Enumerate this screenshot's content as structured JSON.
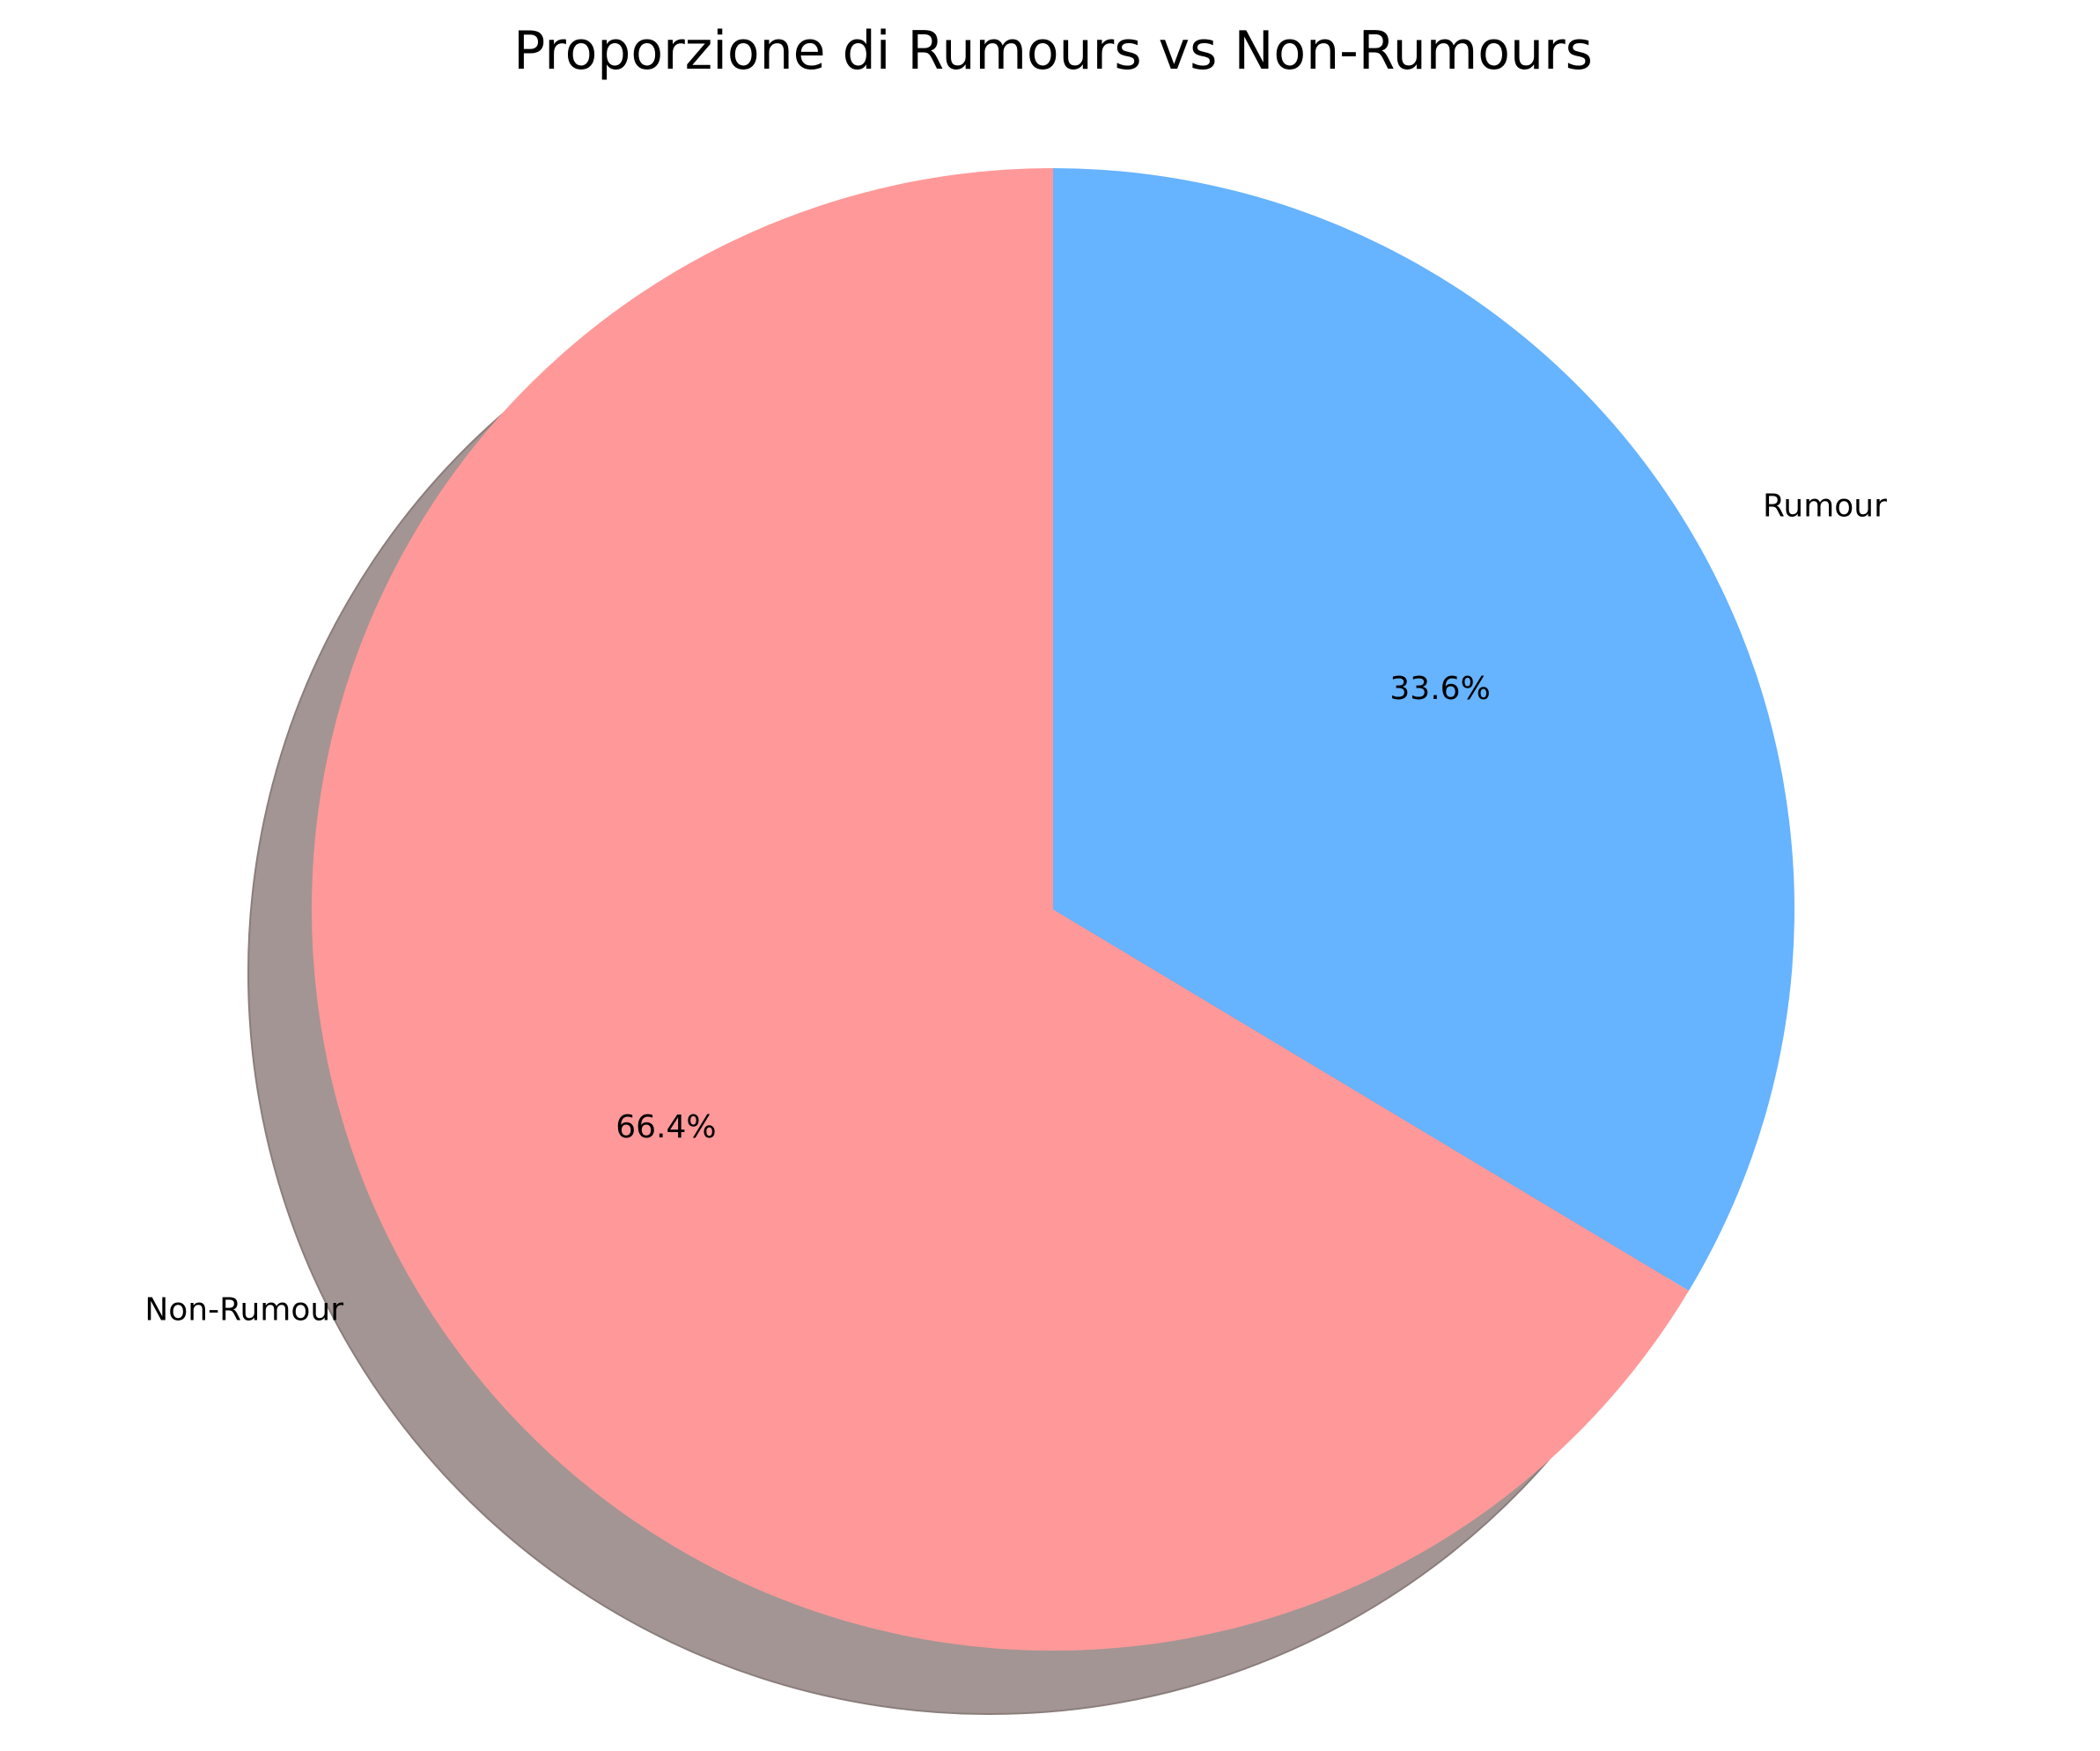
{
  "chart_data": {
    "type": "pie",
    "title": "Proporzione di Rumours vs Non-Rumours",
    "slices": [
      {
        "label": "Non-Rumour",
        "value": 66.4,
        "pct_label": "66.4%",
        "color": "#ff9999"
      },
      {
        "label": "Rumour",
        "value": 33.6,
        "pct_label": "33.6%",
        "color": "#66b3ff"
      }
    ],
    "start_angle_deg": 90,
    "direction": "counterclockwise",
    "shadow": true,
    "shadow_color": "#a39593",
    "legend": "none"
  }
}
